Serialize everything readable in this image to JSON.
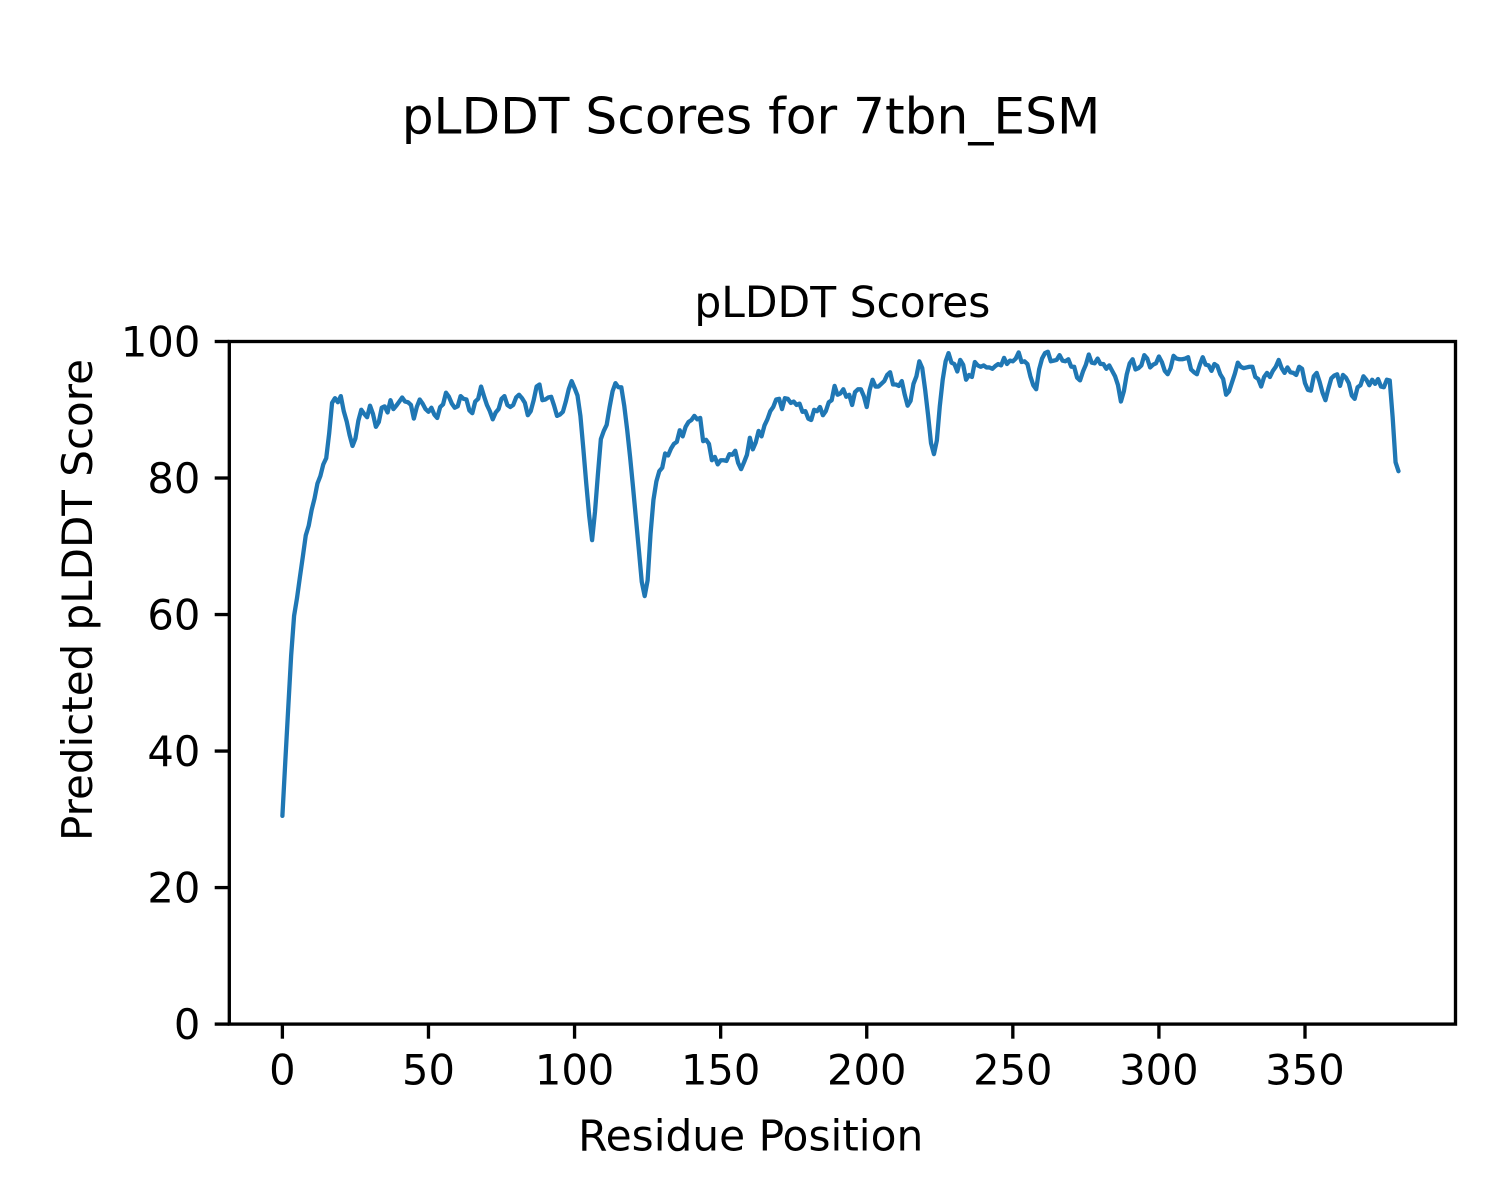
{
  "figure": {
    "suptitle": "pLDDT Scores for 7tbn_ESM",
    "background": "#ffffff"
  },
  "chart_data": {
    "type": "line",
    "title": "pLDDT Scores",
    "xlabel": "Residue Position",
    "ylabel": "Predicted pLDDT Score",
    "x_start": 0,
    "x_step": 1,
    "x_ticks": [
      0,
      50,
      100,
      150,
      200,
      250,
      300,
      350
    ],
    "y_ticks": [
      0,
      20,
      40,
      60,
      80,
      100
    ],
    "xlim": [
      -18.17,
      401.51
    ],
    "ylim": [
      0,
      100
    ],
    "grid": false,
    "legend": null,
    "line_color": "#1f77b4",
    "line_width": 4.3,
    "series_name": "pLDDT",
    "values": [
      30.5,
      38.5,
      46.3,
      54.0,
      59.8,
      62.4,
      65.5,
      68.5,
      71.6,
      73.0,
      75.3,
      77.0,
      79.2,
      80.3,
      82.0,
      82.9,
      86.5,
      91.0,
      91.7,
      91.1,
      92.0,
      89.8,
      88.3,
      86.3,
      84.7,
      85.8,
      88.4,
      90.0,
      89.4,
      88.9,
      90.6,
      89.4,
      87.5,
      88.2,
      90.3,
      90.5,
      89.6,
      91.4,
      90.1,
      90.6,
      91.2,
      91.8,
      91.2,
      91.1,
      90.7,
      88.7,
      90.4,
      91.5,
      90.9,
      90.1,
      89.7,
      90.3,
      89.3,
      88.8,
      90.4,
      90.8,
      92.5,
      91.9,
      90.9,
      90.3,
      90.5,
      92.0,
      91.6,
      91.5,
      89.9,
      89.5,
      91.2,
      91.6,
      93.4,
      92.0,
      90.7,
      89.8,
      88.6,
      89.6,
      90.1,
      91.6,
      92.0,
      90.7,
      90.4,
      90.7,
      91.8,
      92.2,
      91.7,
      91.0,
      89.2,
      89.8,
      91.4,
      93.4,
      93.7,
      91.4,
      91.5,
      91.8,
      91.9,
      90.6,
      89.1,
      89.3,
      89.7,
      91.2,
      93.0,
      94.2,
      93.2,
      92.1,
      89.1,
      84.3,
      79.2,
      74.5,
      70.9,
      75.1,
      80.6,
      85.7,
      86.9,
      87.8,
      90.4,
      92.7,
      93.9,
      93.3,
      93.3,
      90.6,
      87.1,
      83.1,
      78.7,
      74.1,
      69.5,
      64.8,
      62.7,
      65.0,
      71.8,
      76.8,
      79.5,
      81.0,
      81.5,
      83.6,
      83.3,
      84.3,
      85.0,
      85.3,
      87.0,
      86.1,
      87.5,
      88.2,
      88.5,
      89.1,
      88.6,
      88.8,
      85.4,
      85.6,
      85.0,
      82.6,
      83.1,
      82.0,
      82.6,
      82.6,
      82.5,
      83.5,
      83.4,
      84.0,
      82.2,
      81.3,
      82.3,
      83.4,
      85.9,
      84.2,
      85.2,
      86.9,
      86.1,
      87.7,
      88.6,
      89.8,
      90.4,
      91.5,
      91.6,
      90.1,
      91.7,
      91.6,
      91.0,
      91.2,
      90.7,
      90.9,
      89.7,
      89.8,
      88.7,
      88.5,
      90.0,
      89.8,
      90.4,
      89.2,
      89.8,
      91.1,
      91.4,
      93.5,
      92.2,
      92.4,
      93.0,
      91.9,
      92.2,
      90.7,
      92.6,
      93.0,
      93.0,
      92.0,
      90.4,
      92.9,
      94.4,
      93.4,
      93.4,
      93.8,
      94.2,
      95.1,
      95.5,
      93.7,
      93.7,
      93.5,
      94.2,
      92.2,
      90.6,
      91.3,
      93.8,
      94.9,
      97.1,
      96.1,
      92.9,
      89.2,
      85.1,
      83.5,
      85.5,
      90.5,
      94.4,
      97.1,
      98.3,
      96.9,
      96.7,
      95.6,
      97.3,
      96.6,
      94.4,
      95.1,
      94.8,
      97.0,
      96.5,
      96.3,
      96.5,
      96.2,
      96.2,
      96.0,
      96.4,
      96.7,
      96.5,
      97.6,
      96.7,
      97.2,
      97.1,
      97.5,
      98.4,
      97.0,
      97.1,
      96.7,
      94.9,
      93.6,
      93.0,
      95.9,
      97.5,
      98.3,
      98.5,
      97.1,
      97.2,
      97.3,
      98.0,
      97.2,
      97.1,
      97.4,
      96.3,
      96.3,
      94.7,
      94.3,
      95.6,
      96.6,
      98.1,
      96.9,
      96.8,
      97.5,
      96.7,
      96.7,
      96.0,
      96.5,
      95.7,
      94.9,
      93.6,
      91.2,
      92.7,
      95.2,
      96.8,
      97.4,
      95.9,
      96.1,
      96.5,
      98.0,
      97.5,
      96.2,
      96.6,
      96.8,
      97.8,
      97.0,
      95.7,
      95.2,
      96.1,
      97.9,
      97.5,
      97.4,
      97.4,
      97.5,
      97.7,
      95.9,
      95.5,
      95.2,
      96.6,
      97.7,
      96.6,
      96.5,
      95.7,
      96.7,
      96.4,
      95.2,
      94.5,
      92.2,
      92.7,
      94.0,
      95.3,
      96.9,
      96.3,
      96.1,
      96.2,
      96.3,
      96.3,
      94.8,
      94.5,
      93.4,
      94.8,
      95.4,
      94.8,
      95.7,
      96.3,
      97.3,
      96.1,
      95.4,
      96.2,
      95.5,
      95.4,
      95.1,
      96.3,
      96.0,
      93.9,
      92.9,
      92.8,
      94.9,
      95.4,
      94.1,
      92.5,
      91.4,
      93.1,
      94.6,
      95.0,
      95.2,
      93.5,
      95.1,
      94.7,
      93.9,
      92.1,
      91.6,
      93.3,
      93.6,
      94.9,
      94.4,
      93.6,
      94.4,
      93.8,
      94.5,
      93.4,
      93.3,
      94.4,
      94.3,
      88.9,
      82.3,
      81.0
    ]
  }
}
